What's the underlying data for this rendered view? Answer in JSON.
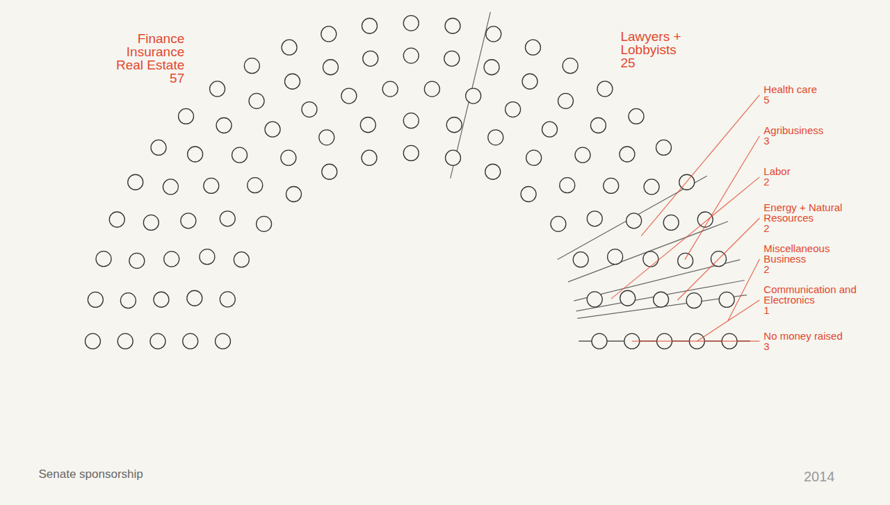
{
  "chart_data": {
    "type": "parliament",
    "caption": "Senate sponsorship",
    "date": "2014",
    "categories": [
      "Finance Insurance Real Estate",
      "Lawyers + Lobbyists",
      "Health care",
      "Agribusiness",
      "Labor",
      "Energy + Natural Resources",
      "Miscellaneous Business",
      "Communication and Electronics",
      "No money raised"
    ],
    "values": [
      57,
      25,
      5,
      3,
      2,
      2,
      2,
      1,
      3
    ],
    "color": "#e2472d",
    "data_labels": true,
    "tick_labels": false
  }
}
